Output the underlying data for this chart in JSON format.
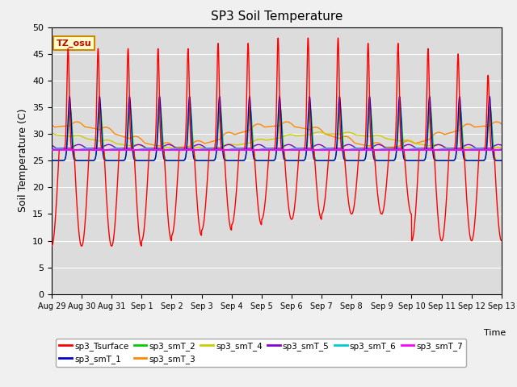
{
  "title": "SP3 Soil Temperature",
  "ylabel": "Soil Temperature (C)",
  "xlabel": "Time",
  "tz_label": "TZ_osu",
  "ylim": [
    0,
    50
  ],
  "background_color": "#dcdcdc",
  "fig_facecolor": "#f0f0f0",
  "series_colors": {
    "sp3_Tsurface": "#ff0000",
    "sp3_smT_1": "#0000cc",
    "sp3_smT_2": "#00cc00",
    "sp3_smT_3": "#ff8800",
    "sp3_smT_4": "#cccc00",
    "sp3_smT_5": "#8800cc",
    "sp3_smT_6": "#00cccc",
    "sp3_smT_7": "#ff00ff"
  },
  "x_tick_labels": [
    "Aug 29",
    "Aug 30",
    "Aug 31",
    "Sep 1",
    "Sep 2",
    "Sep 3",
    "Sep 4",
    "Sep 5",
    "Sep 6",
    "Sep 7",
    "Sep 8",
    "Sep 9",
    "Sep 10",
    "Sep 11",
    "Sep 12",
    "Sep 13"
  ],
  "num_days": 15,
  "points_per_day": 144
}
